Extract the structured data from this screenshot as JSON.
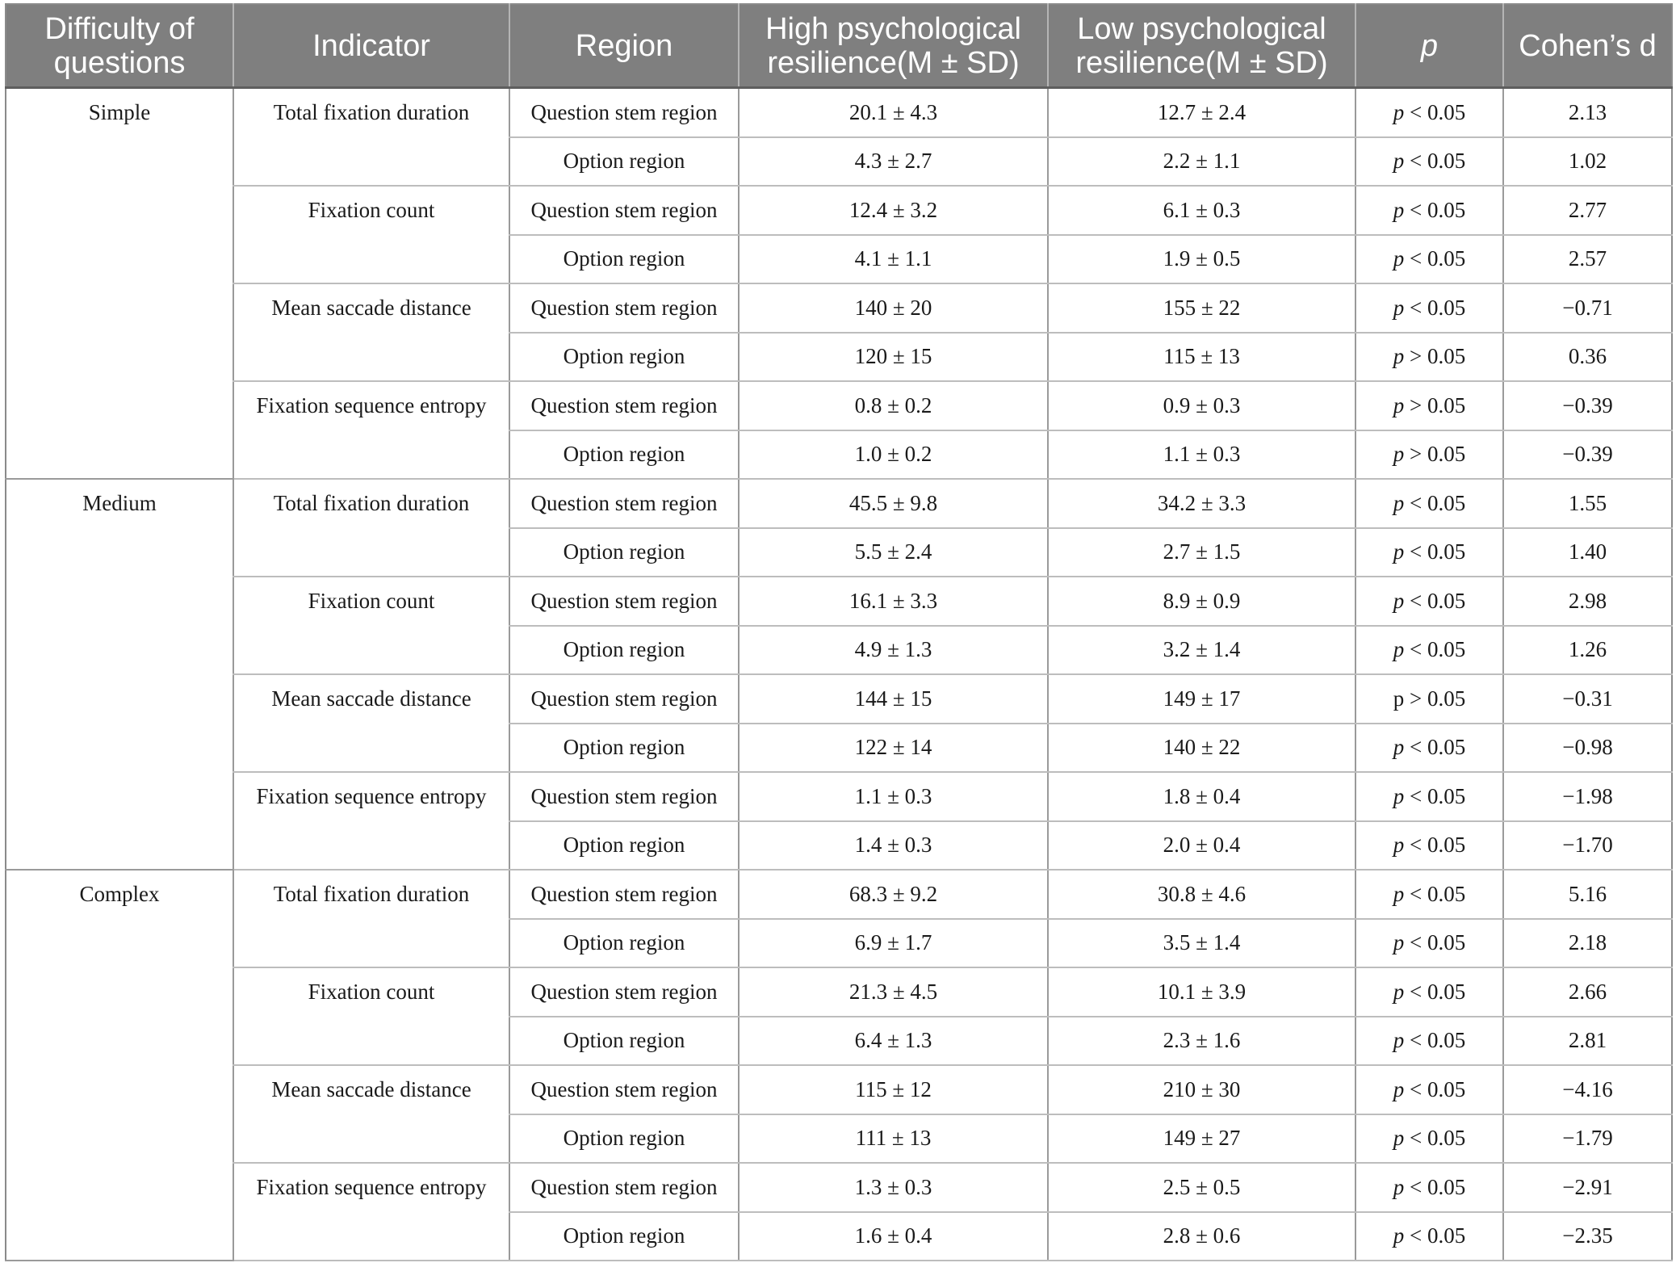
{
  "table": {
    "headers": {
      "difficulty": "Difficulty of questions",
      "indicator": "Indicator",
      "region": "Region",
      "high": "High psychological resilience(M ± SD)",
      "low": "Low psychological resilience(M ± SD)",
      "p": "p",
      "cohens_d": "Cohen’s d"
    },
    "groups": [
      {
        "difficulty": "Simple",
        "indicators": [
          {
            "name": "Total fixation duration",
            "rows": [
              {
                "region": "Question stem region",
                "high": "20.1 ± 4.3",
                "low": "12.7 ± 2.4",
                "p_sym": "p",
                "p_rest": " < 0.05",
                "d": "2.13"
              },
              {
                "region": "Option region",
                "high": "4.3 ± 2.7",
                "low": "2.2 ± 1.1",
                "p_sym": "p",
                "p_rest": " < 0.05",
                "d": "1.02"
              }
            ]
          },
          {
            "name": "Fixation count",
            "rows": [
              {
                "region": "Question stem region",
                "high": "12.4 ± 3.2",
                "low": "6.1 ± 0.3",
                "p_sym": "p",
                "p_rest": " < 0.05",
                "d": "2.77"
              },
              {
                "region": "Option region",
                "high": "4.1 ± 1.1",
                "low": "1.9 ± 0.5",
                "p_sym": "p",
                "p_rest": " < 0.05",
                "d": "2.57"
              }
            ]
          },
          {
            "name": "Mean saccade distance",
            "rows": [
              {
                "region": "Question stem region",
                "high": "140 ± 20",
                "low": "155 ± 22",
                "p_sym": "p",
                "p_rest": " < 0.05",
                "d": "−0.71"
              },
              {
                "region": "Option region",
                "high": "120 ± 15",
                "low": "115 ± 13",
                "p_sym": "p",
                "p_rest": " > 0.05",
                "d": "0.36"
              }
            ]
          },
          {
            "name": "Fixation sequence entropy",
            "rows": [
              {
                "region": "Question stem region",
                "high": "0.8 ± 0.2",
                "low": "0.9 ± 0.3",
                "p_sym": "p",
                "p_rest": " > 0.05",
                "d": "−0.39"
              },
              {
                "region": "Option region",
                "high": "1.0 ± 0.2",
                "low": "1.1 ± 0.3",
                "p_sym": "p",
                "p_rest": " > 0.05",
                "d": "−0.39"
              }
            ]
          }
        ]
      },
      {
        "difficulty": "Medium",
        "indicators": [
          {
            "name": "Total fixation duration",
            "rows": [
              {
                "region": "Question stem region",
                "high": "45.5 ± 9.8",
                "low": "34.2 ± 3.3",
                "p_sym": "p",
                "p_rest": " < 0.05",
                "d": "1.55"
              },
              {
                "region": "Option region",
                "high": "5.5 ± 2.4",
                "low": "2.7 ± 1.5",
                "p_sym": "p",
                "p_rest": " < 0.05",
                "d": "1.40"
              }
            ]
          },
          {
            "name": "Fixation count",
            "rows": [
              {
                "region": "Question stem region",
                "high": "16.1 ± 3.3",
                "low": "8.9 ± 0.9",
                "p_sym": "p",
                "p_rest": " < 0.05",
                "d": "2.98"
              },
              {
                "region": "Option region",
                "high": "4.9 ± 1.3",
                "low": "3.2 ± 1.4",
                "p_sym": "p",
                "p_rest": " < 0.05",
                "d": "1.26"
              }
            ]
          },
          {
            "name": "Mean saccade distance",
            "rows": [
              {
                "region": "Question stem region",
                "high": "144 ± 15",
                "low": "149 ± 17",
                "p_sym": "",
                "p_rest": "p > 0.05",
                "d": "−0.31"
              },
              {
                "region": "Option region",
                "high": "122 ± 14",
                "low": "140 ± 22",
                "p_sym": "p",
                "p_rest": " < 0.05",
                "d": "−0.98"
              }
            ]
          },
          {
            "name": "Fixation sequence entropy",
            "rows": [
              {
                "region": "Question stem region",
                "high": "1.1 ± 0.3",
                "low": "1.8 ± 0.4",
                "p_sym": "p",
                "p_rest": " < 0.05",
                "d": "−1.98"
              },
              {
                "region": "Option region",
                "high": "1.4 ± 0.3",
                "low": "2.0 ± 0.4",
                "p_sym": "p",
                "p_rest": " < 0.05",
                "d": "−1.70"
              }
            ]
          }
        ]
      },
      {
        "difficulty": "Complex",
        "indicators": [
          {
            "name": "Total fixation duration",
            "rows": [
              {
                "region": "Question stem region",
                "high": "68.3 ± 9.2",
                "low": "30.8 ± 4.6",
                "p_sym": "p",
                "p_rest": " < 0.05",
                "d": "5.16"
              },
              {
                "region": "Option region",
                "high": "6.9 ± 1.7",
                "low": "3.5 ± 1.4",
                "p_sym": "p",
                "p_rest": " < 0.05",
                "d": "2.18"
              }
            ]
          },
          {
            "name": "Fixation count",
            "rows": [
              {
                "region": "Question stem region",
                "high": "21.3 ± 4.5",
                "low": "10.1 ± 3.9",
                "p_sym": "p",
                "p_rest": " < 0.05",
                "d": "2.66"
              },
              {
                "region": "Option region",
                "high": "6.4 ± 1.3",
                "low": "2.3 ± 1.6",
                "p_sym": "p",
                "p_rest": " < 0.05",
                "d": "2.81"
              }
            ]
          },
          {
            "name": "Mean saccade distance",
            "rows": [
              {
                "region": "Question stem region",
                "high": "115 ± 12",
                "low": "210 ± 30",
                "p_sym": "p",
                "p_rest": " < 0.05",
                "d": "−4.16"
              },
              {
                "region": "Option region",
                "high": "111 ± 13",
                "low": "149 ± 27",
                "p_sym": "p",
                "p_rest": " < 0.05",
                "d": "−1.79"
              }
            ]
          },
          {
            "name": "Fixation sequence entropy",
            "rows": [
              {
                "region": "Question stem region",
                "high": "1.3 ± 0.3",
                "low": "2.5 ± 0.5",
                "p_sym": "p",
                "p_rest": " < 0.05",
                "d": "−2.91"
              },
              {
                "region": "Option region",
                "high": "1.6 ± 0.4",
                "low": "2.8 ± 0.6",
                "p_sym": "p",
                "p_rest": " < 0.05",
                "d": "−2.35"
              }
            ]
          }
        ]
      }
    ]
  }
}
